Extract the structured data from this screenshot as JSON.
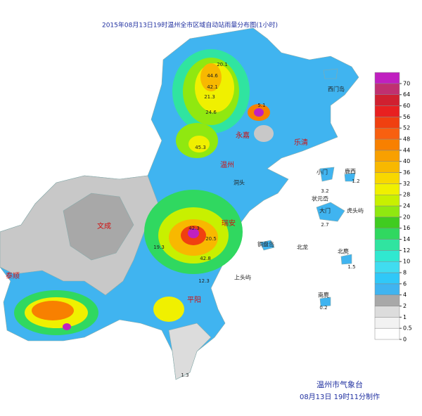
{
  "title": "2015年08月13日19时温州全市区域自动站雨量分布图(1小时)",
  "legend": {
    "levels": [
      0,
      0.5,
      1,
      2,
      4,
      6,
      8,
      10,
      12,
      14,
      16,
      20,
      24,
      28,
      32,
      36,
      40,
      44,
      48,
      52,
      56,
      60,
      64,
      70
    ],
    "colors": [
      "#ffffff",
      "#f2f2f2",
      "#dcdcdc",
      "#a8a8a8",
      "#40b4f0",
      "#30c8f8",
      "#40dcf0",
      "#30e8d0",
      "#30e4a0",
      "#30d860",
      "#40cc20",
      "#90e810",
      "#c8f000",
      "#f0f000",
      "#f8d800",
      "#f8b800",
      "#f8a000",
      "#f88000",
      "#f86010",
      "#f04010",
      "#e82020",
      "#d02030",
      "#c03070",
      "#c020c0"
    ]
  },
  "places": [
    "永嘉",
    "乐清",
    "温州",
    "文成",
    "瑞安",
    "泰顺",
    "平阳",
    "洞头",
    "小门",
    "鹿西",
    "大门",
    "状元岙",
    "虎头屿",
    "铜盘岛",
    "北龙",
    "北麂",
    "南麂",
    "上头屿",
    "西门岛"
  ],
  "stations": [
    20.1,
    44.6,
    42.1,
    21.3,
    24.6,
    45.3,
    5.1,
    42.3,
    20.5,
    19.3,
    12.3,
    3.2,
    1.2,
    2.7,
    1.5,
    0.2,
    1.3,
    42.8
  ],
  "footer": {
    "agency": "温州市气象台",
    "made": "08月13日 19时11分制作"
  }
}
